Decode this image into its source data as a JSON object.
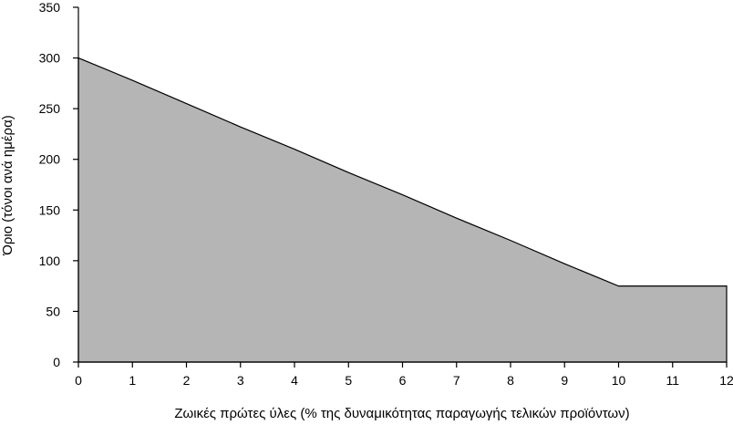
{
  "chart_data": {
    "type": "area",
    "title": "",
    "xlabel": "Ζωικές πρώτες ύλες (% της δυναμικότητας παραγωγής τελικών προϊόντων)",
    "ylabel": "Όριο (τόνοι ανά ημέρα)",
    "xlim": [
      0,
      12
    ],
    "ylim": [
      0,
      350
    ],
    "x_ticks": [
      "0",
      "1",
      "2",
      "3",
      "4",
      "5",
      "6",
      "7",
      "8",
      "9",
      "10",
      "11",
      "12"
    ],
    "y_ticks": [
      "0",
      "50",
      "100",
      "150",
      "200",
      "250",
      "300",
      "350"
    ],
    "grid": false,
    "legend": "none",
    "fill_color": "#b5b5b5",
    "line_color": "#000000",
    "series": [
      {
        "x": [
          0,
          1,
          2,
          3,
          4,
          5,
          6,
          7,
          8,
          9,
          10,
          11,
          12
        ],
        "values": [
          300,
          278,
          255,
          232,
          210,
          187,
          165,
          142,
          120,
          97,
          75,
          75,
          75
        ]
      }
    ]
  }
}
